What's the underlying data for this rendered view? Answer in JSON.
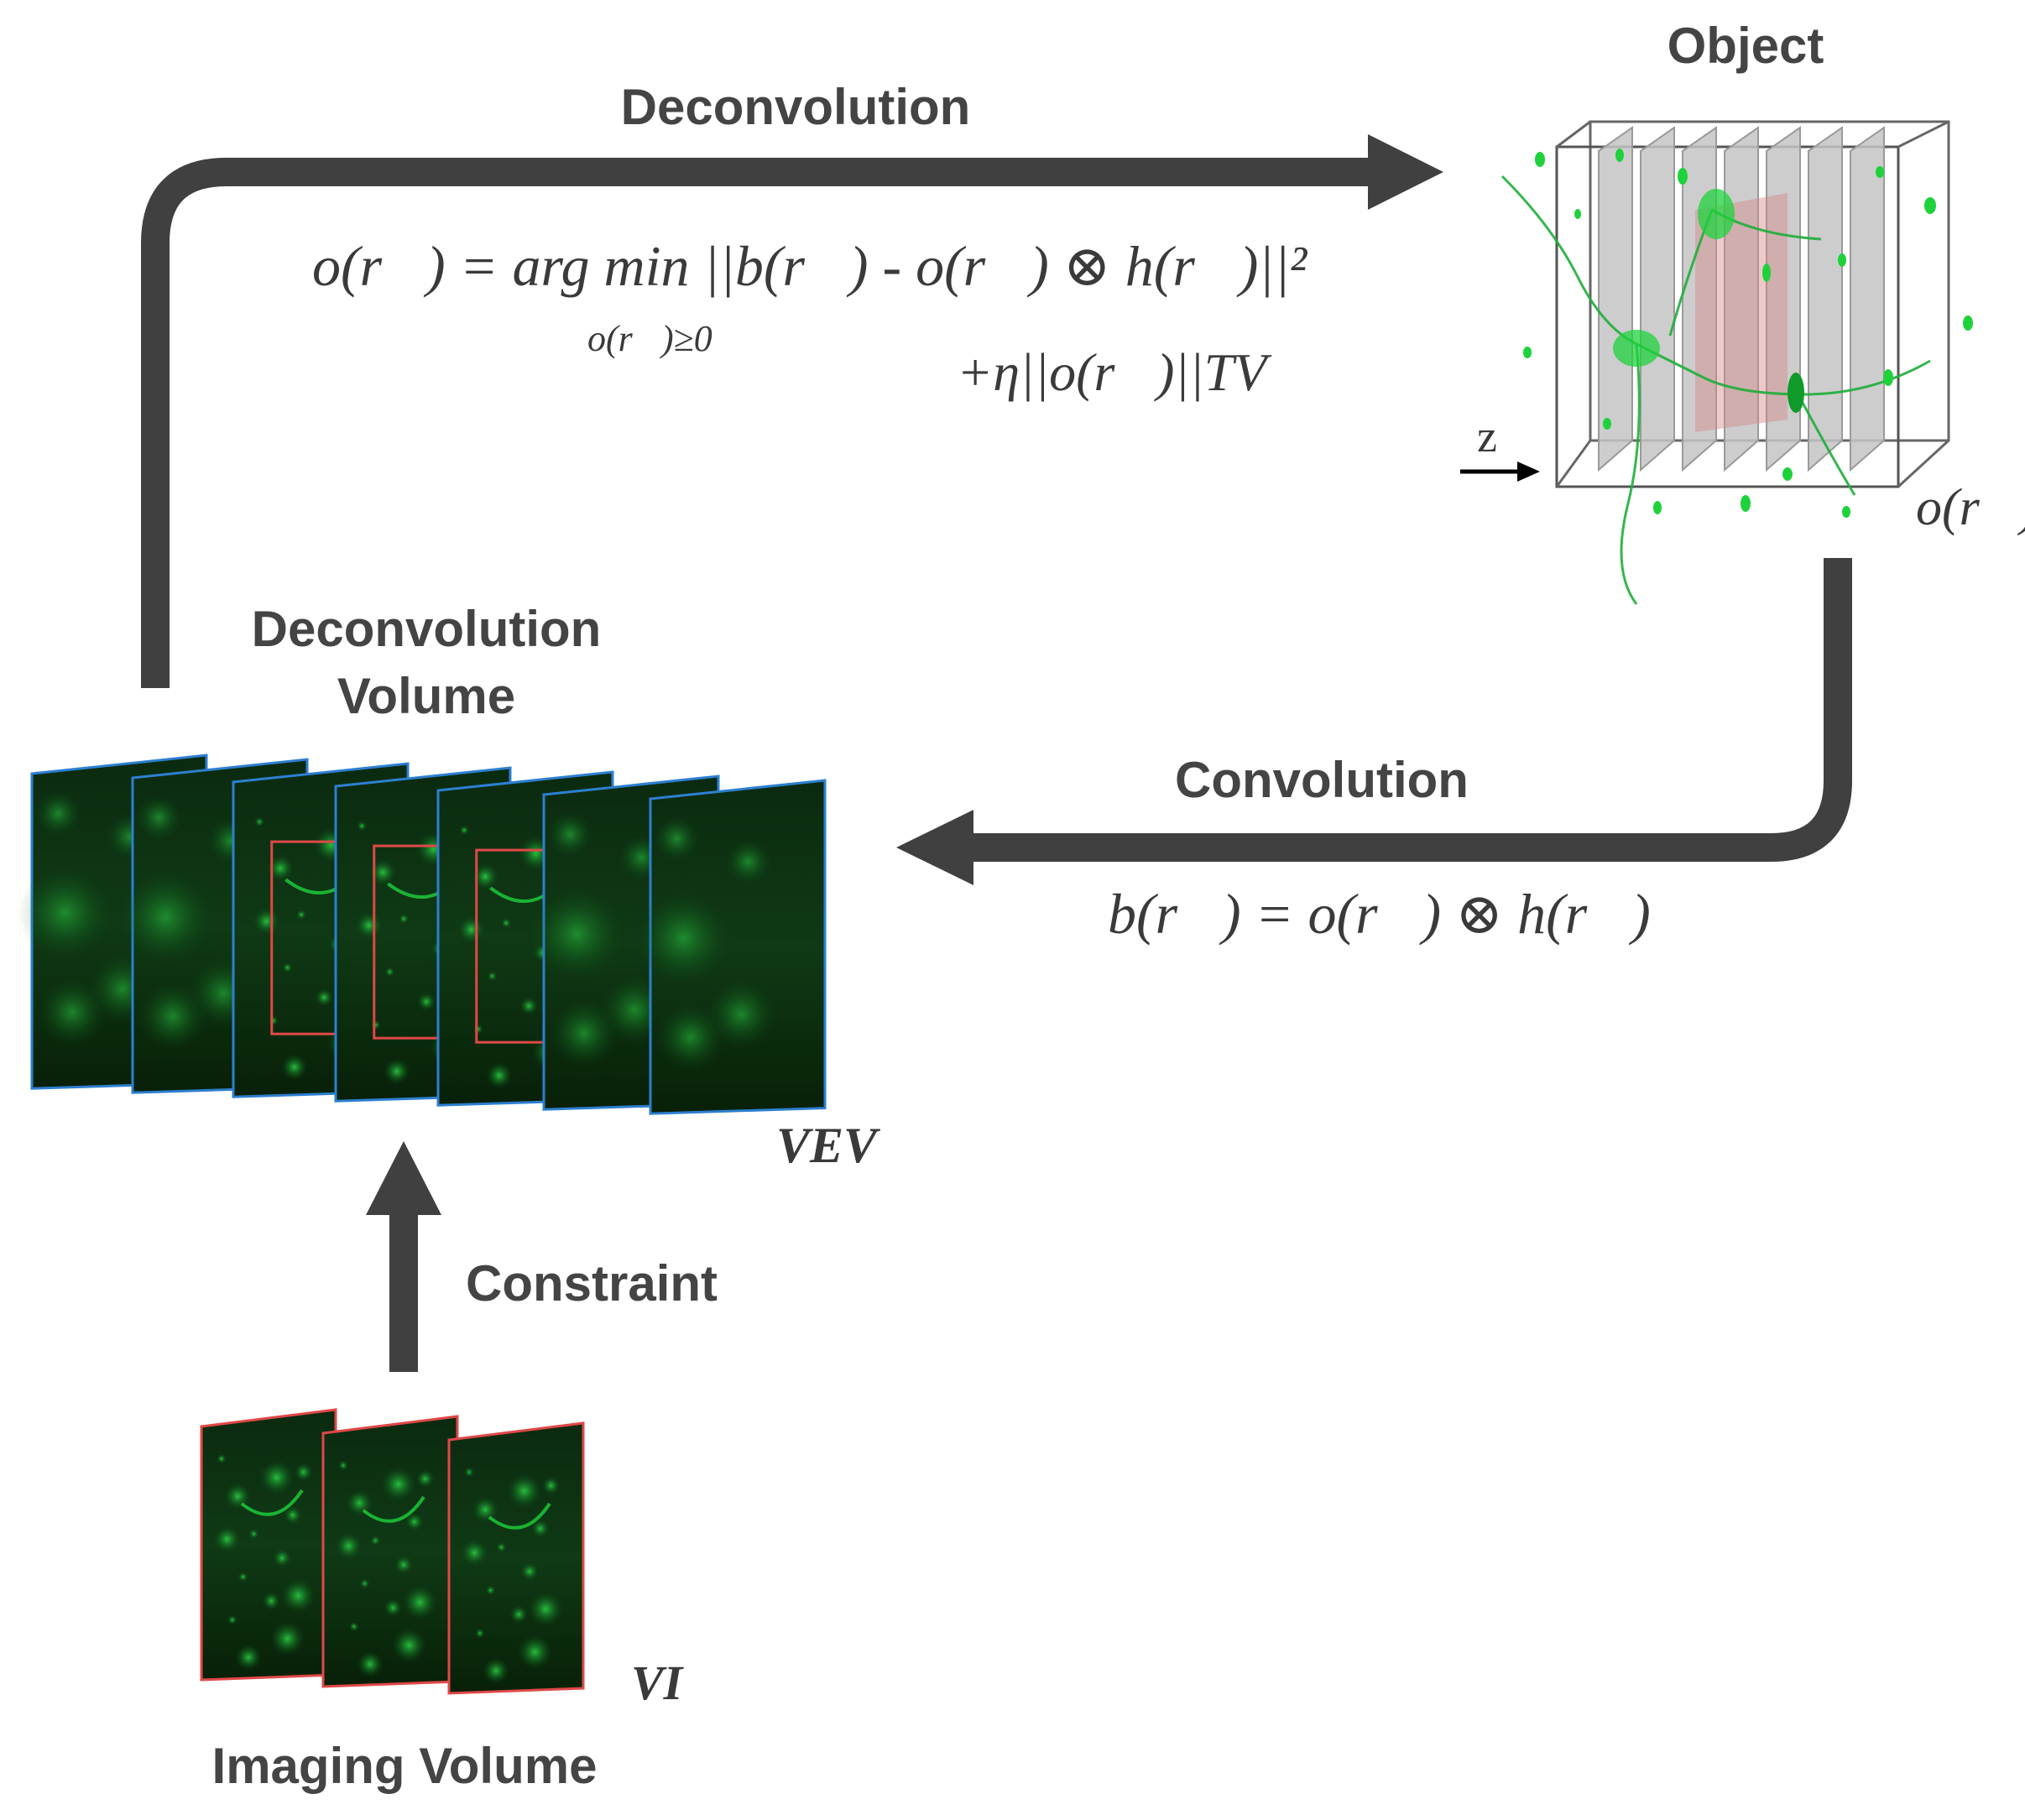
{
  "labels": {
    "deconvolution": "Deconvolution",
    "object": "Object",
    "deconvolution_volume": [
      "Deconvolution",
      "Volume"
    ],
    "convolution": "Convolution",
    "constraint": "Constraint",
    "imaging_volume": "Imaging Volume",
    "z_axis": "z"
  },
  "equations": {
    "deconvolution_main": "o(r⃗) = arg min ||b(r⃗) - o(r⃗) ⊗ h(r⃗)||²",
    "deconvolution_subscript": "o(r⃗)≥0",
    "deconvolution_regularizer": "+η||o(r⃗)||TV",
    "object_symbol": "o(r⃗)",
    "convolution": "b(r⃗) = o(r⃗) ⊗ h(r⃗)",
    "v_ev": "VEV",
    "v_i": "VI"
  },
  "colors": {
    "arrow": "#404040",
    "slice_border_blue": "#2d7fd0",
    "slice_border_red": "#e04848",
    "fluorescence": "#1fd23c",
    "plane_gray": "#c4c4c4",
    "plane_red": "#d48a8a"
  }
}
